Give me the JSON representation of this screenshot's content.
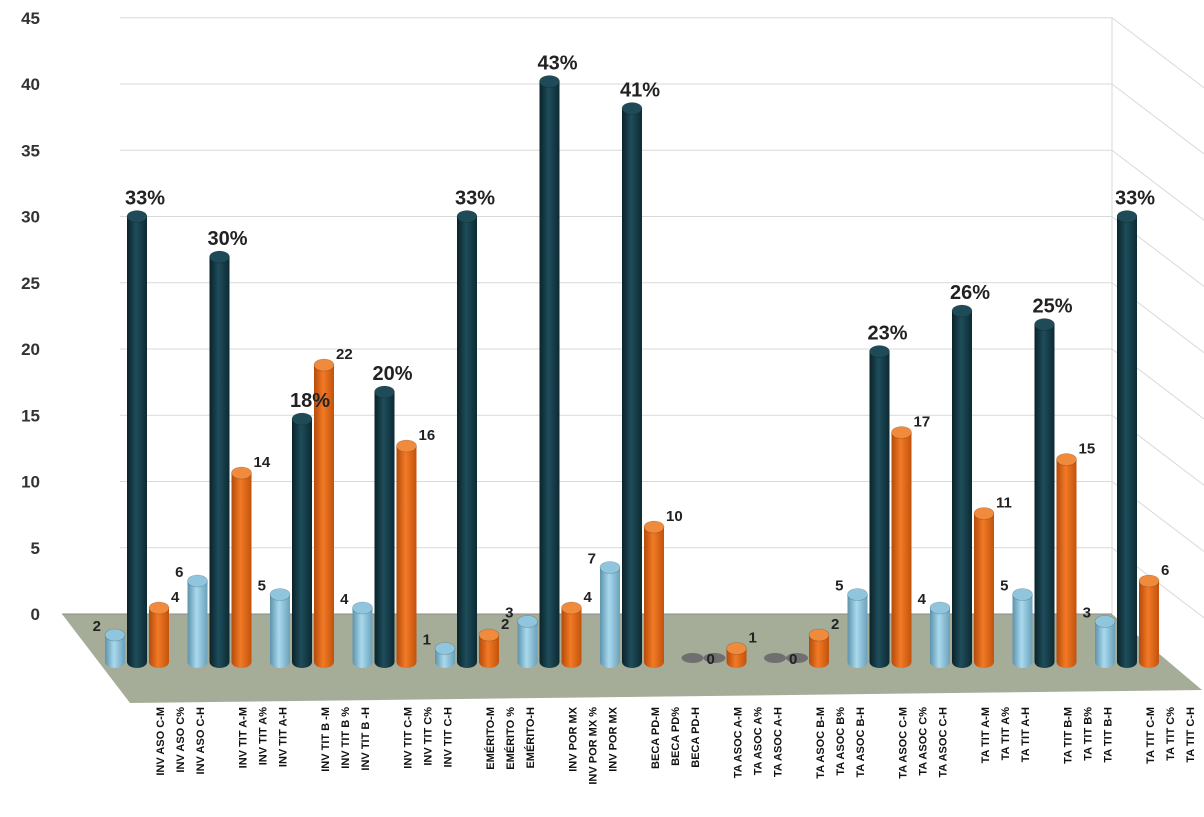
{
  "chart_data": {
    "type": "bar",
    "style": "3d-clustered-column",
    "ylim": [
      0,
      45
    ],
    "yticks": [
      "0",
      "5",
      "10",
      "15",
      "20",
      "25",
      "30",
      "35",
      "40",
      "45"
    ],
    "grid": true,
    "categories": [
      [
        "INV ASO C-M",
        "INV ASO C%",
        "INV ASO C-H"
      ],
      [
        "INV TIT A-M",
        "INV TIT A%",
        "INV TIT A-H"
      ],
      [
        "INV TIT B -M",
        "INV TIT B %",
        "INV TIT B -H"
      ],
      [
        "INV TIT C-M",
        "INV TIT C%",
        "INV TIT C-H"
      ],
      [
        "EMÉRITO-M",
        "EMÉRITO %",
        "EMÉRITO-H"
      ],
      [
        "INV POR MX",
        "INV POR MX %",
        "INV POR MX"
      ],
      [
        "BECA PD-M",
        "BECA PD%",
        "BECA PD-H"
      ],
      [
        "TA ASOC A-M",
        "TA ASOC A%",
        "TA ASOC A-H"
      ],
      [
        "TA ASOC B-M",
        "TA ASOC B%",
        "TA ASOC B-H"
      ],
      [
        "TA ASOC C-M",
        "TA ASOC C%",
        "TA ASOC C-H"
      ],
      [
        "TA TIT A-M",
        "TA TIT A%",
        "TA TIT A-H"
      ],
      [
        "TA TIT B-M",
        "TA TIT B%",
        "TA TIT B-H"
      ],
      [
        "TA TIT C-M",
        "TA TIT C%",
        "TA TIT C-H"
      ]
    ],
    "series": [
      {
        "values": [
          2,
          6,
          5,
          4,
          1,
          3,
          7,
          0,
          0,
          5,
          4,
          5,
          3
        ],
        "labels": [
          "2",
          "6",
          "5",
          "4",
          "1",
          "3",
          "7",
          "0",
          "0",
          "5",
          "4",
          "5",
          "3"
        ]
      },
      {
        "values": [
          33,
          30,
          18,
          20,
          33,
          43,
          41,
          0,
          0,
          23,
          26,
          25,
          33
        ],
        "labels": [
          "33%",
          "30%",
          "18%",
          "20%",
          "33%",
          "43%",
          "41%",
          "",
          "",
          "23%",
          "26%",
          "25%",
          "33%"
        ]
      },
      {
        "values": [
          4,
          14,
          22,
          16,
          2,
          4,
          10,
          1,
          2,
          17,
          11,
          15,
          6
        ],
        "labels": [
          "4",
          "14",
          "22",
          "16",
          "2",
          "4",
          "10",
          "1",
          "2",
          "17",
          "11",
          "15",
          "6"
        ]
      }
    ],
    "colors": {
      "light": "#8fc6de",
      "dark": "#123844",
      "orange": "#e0600f",
      "floor": "#a5ad98",
      "grid": "#d9d9d9",
      "zero": "#8a8a8a"
    }
  }
}
